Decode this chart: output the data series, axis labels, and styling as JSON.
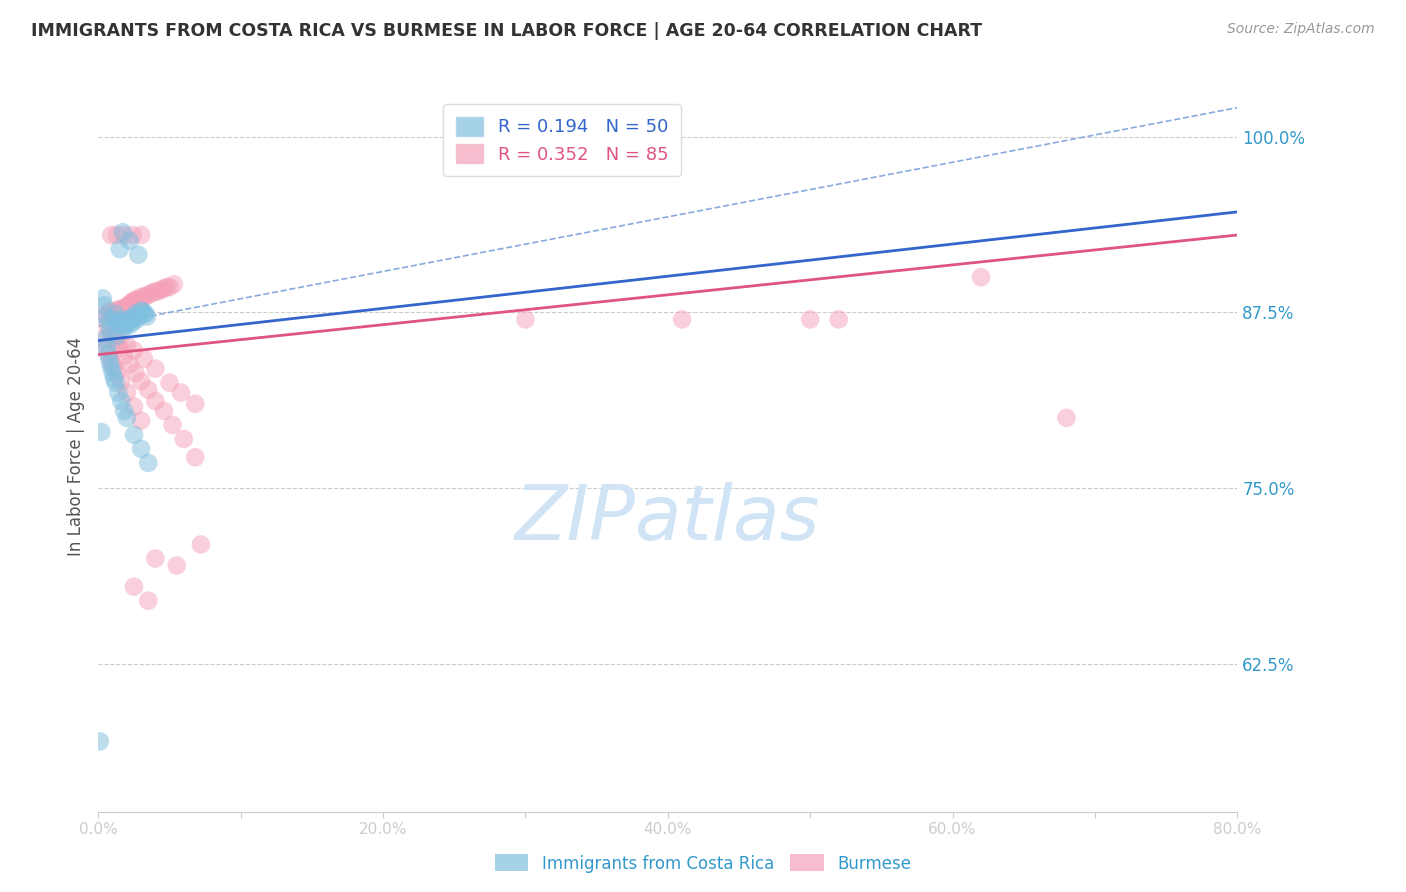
{
  "title": "IMMIGRANTS FROM COSTA RICA VS BURMESE IN LABOR FORCE | AGE 20-64 CORRELATION CHART",
  "source": "Source: ZipAtlas.com",
  "ylabel": "In Labor Force | Age 20-64",
  "xlim": [
    0.0,
    0.8
  ],
  "ylim": [
    0.52,
    1.04
  ],
  "xticks": [
    0.0,
    0.1,
    0.2,
    0.3,
    0.4,
    0.5,
    0.6,
    0.7,
    0.8
  ],
  "xticklabels": [
    "0.0%",
    "",
    "20.0%",
    "",
    "40.0%",
    "",
    "60.0%",
    "",
    "80.0%"
  ],
  "yticks": [
    0.625,
    0.75,
    0.875,
    1.0
  ],
  "yticklabels": [
    "62.5%",
    "75.0%",
    "87.5%",
    "100.0%"
  ],
  "legend1_r": "0.194",
  "legend1_n": "50",
  "legend2_r": "0.352",
  "legend2_n": "85",
  "color_blue": "#7fbfdf",
  "color_pink": "#f4a0b8",
  "color_blue_line": "#3366cc",
  "color_pink_line": "#e05580",
  "color_dashed": "#88aadd",
  "grid_color": "#cccccc",
  "title_color": "#333333",
  "axis_label_color": "#555555",
  "tick_label_color": "#3399cc",
  "watermark_color": "#d0e4f5",
  "costa_rica_x": [
    0.005,
    0.007,
    0.01,
    0.012,
    0.013,
    0.014,
    0.015,
    0.016,
    0.017,
    0.018,
    0.019,
    0.02,
    0.021,
    0.022,
    0.023,
    0.024,
    0.025,
    0.026,
    0.027,
    0.028,
    0.03,
    0.031,
    0.032,
    0.033,
    0.034,
    0.005,
    0.006,
    0.007,
    0.008,
    0.009,
    0.01,
    0.011,
    0.012,
    0.014,
    0.016,
    0.018,
    0.02,
    0.025,
    0.03,
    0.035,
    0.015,
    0.017,
    0.022,
    0.028,
    0.003,
    0.004,
    0.008,
    0.013,
    0.002,
    0.001
  ],
  "costa_rica_y": [
    0.872,
    0.868,
    0.87,
    0.874,
    0.868,
    0.866,
    0.868,
    0.87,
    0.866,
    0.864,
    0.866,
    0.868,
    0.87,
    0.866,
    0.87,
    0.868,
    0.872,
    0.874,
    0.87,
    0.872,
    0.876,
    0.876,
    0.874,
    0.874,
    0.872,
    0.856,
    0.85,
    0.845,
    0.84,
    0.836,
    0.832,
    0.828,
    0.825,
    0.818,
    0.812,
    0.805,
    0.8,
    0.788,
    0.778,
    0.768,
    0.92,
    0.932,
    0.926,
    0.916,
    0.885,
    0.88,
    0.862,
    0.858,
    0.79,
    0.57
  ],
  "burmese_x": [
    0.005,
    0.007,
    0.008,
    0.009,
    0.01,
    0.011,
    0.012,
    0.013,
    0.014,
    0.015,
    0.016,
    0.017,
    0.018,
    0.019,
    0.02,
    0.021,
    0.022,
    0.023,
    0.024,
    0.025,
    0.026,
    0.027,
    0.028,
    0.03,
    0.032,
    0.034,
    0.036,
    0.038,
    0.04,
    0.042,
    0.044,
    0.046,
    0.048,
    0.05,
    0.053,
    0.006,
    0.008,
    0.01,
    0.012,
    0.015,
    0.018,
    0.022,
    0.026,
    0.03,
    0.035,
    0.04,
    0.046,
    0.052,
    0.06,
    0.068,
    0.003,
    0.005,
    0.007,
    0.009,
    0.011,
    0.013,
    0.016,
    0.02,
    0.025,
    0.03,
    0.009,
    0.013,
    0.018,
    0.024,
    0.03,
    0.01,
    0.015,
    0.02,
    0.025,
    0.032,
    0.04,
    0.05,
    0.058,
    0.068,
    0.04,
    0.055,
    0.072,
    0.025,
    0.035,
    0.5,
    0.62,
    0.68,
    0.3,
    0.41,
    0.52
  ],
  "burmese_y": [
    0.874,
    0.872,
    0.876,
    0.874,
    0.872,
    0.874,
    0.876,
    0.875,
    0.877,
    0.876,
    0.876,
    0.878,
    0.877,
    0.878,
    0.879,
    0.88,
    0.88,
    0.882,
    0.882,
    0.883,
    0.884,
    0.884,
    0.884,
    0.886,
    0.886,
    0.887,
    0.888,
    0.889,
    0.89,
    0.89,
    0.891,
    0.892,
    0.893,
    0.893,
    0.895,
    0.866,
    0.862,
    0.858,
    0.854,
    0.849,
    0.844,
    0.838,
    0.832,
    0.826,
    0.82,
    0.812,
    0.805,
    0.795,
    0.785,
    0.772,
    0.856,
    0.85,
    0.845,
    0.84,
    0.836,
    0.832,
    0.826,
    0.818,
    0.808,
    0.798,
    0.93,
    0.93,
    0.93,
    0.93,
    0.93,
    0.86,
    0.856,
    0.852,
    0.848,
    0.842,
    0.835,
    0.825,
    0.818,
    0.81,
    0.7,
    0.695,
    0.71,
    0.68,
    0.67,
    0.87,
    0.9,
    0.8,
    0.87,
    0.87,
    0.87
  ],
  "cr_line_x0": 0.0,
  "cr_line_y0": 0.855,
  "cr_line_x1": 0.35,
  "cr_line_y1": 0.895,
  "bu_line_x0": 0.0,
  "bu_line_y0": 0.845,
  "bu_line_x1": 0.8,
  "bu_line_y1": 0.93,
  "dash_line_x0": 0.05,
  "dash_line_y0": 0.875,
  "dash_line_x1": 0.72,
  "dash_line_y1": 1.005
}
